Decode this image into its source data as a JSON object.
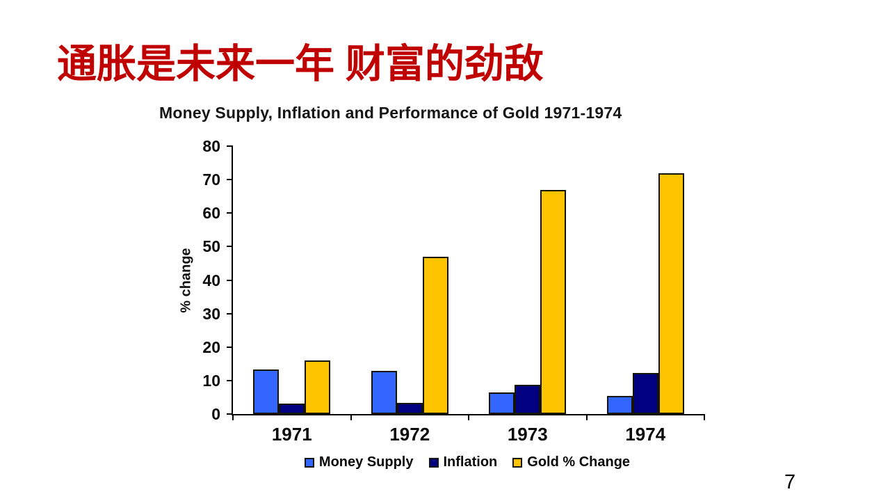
{
  "slide": {
    "title": "通胀是未来一年 财富的劲敌",
    "title_color": "#C00000",
    "page_number": "7",
    "background": "#FFFFFF"
  },
  "chart_data": {
    "type": "bar",
    "title": "Money Supply, Inflation and Performance of Gold 1971-1974",
    "xlabel": "",
    "ylabel": "% change",
    "ylim": [
      0,
      80
    ],
    "ytick_step": 10,
    "grid": false,
    "legend_position": "bottom",
    "axis_color": "#000000",
    "categories": [
      "1971",
      "1972",
      "1973",
      "1974"
    ],
    "series": [
      {
        "name": "Money Supply",
        "color": "#3366FF",
        "values": [
          13.4,
          12.9,
          6.5,
          5.4
        ]
      },
      {
        "name": "Inflation",
        "color": "#000080",
        "values": [
          3.2,
          3.4,
          8.7,
          12.3
        ]
      },
      {
        "name": "Gold % Change",
        "color": "#FFC400",
        "values": [
          16,
          47,
          67,
          72
        ]
      }
    ]
  }
}
